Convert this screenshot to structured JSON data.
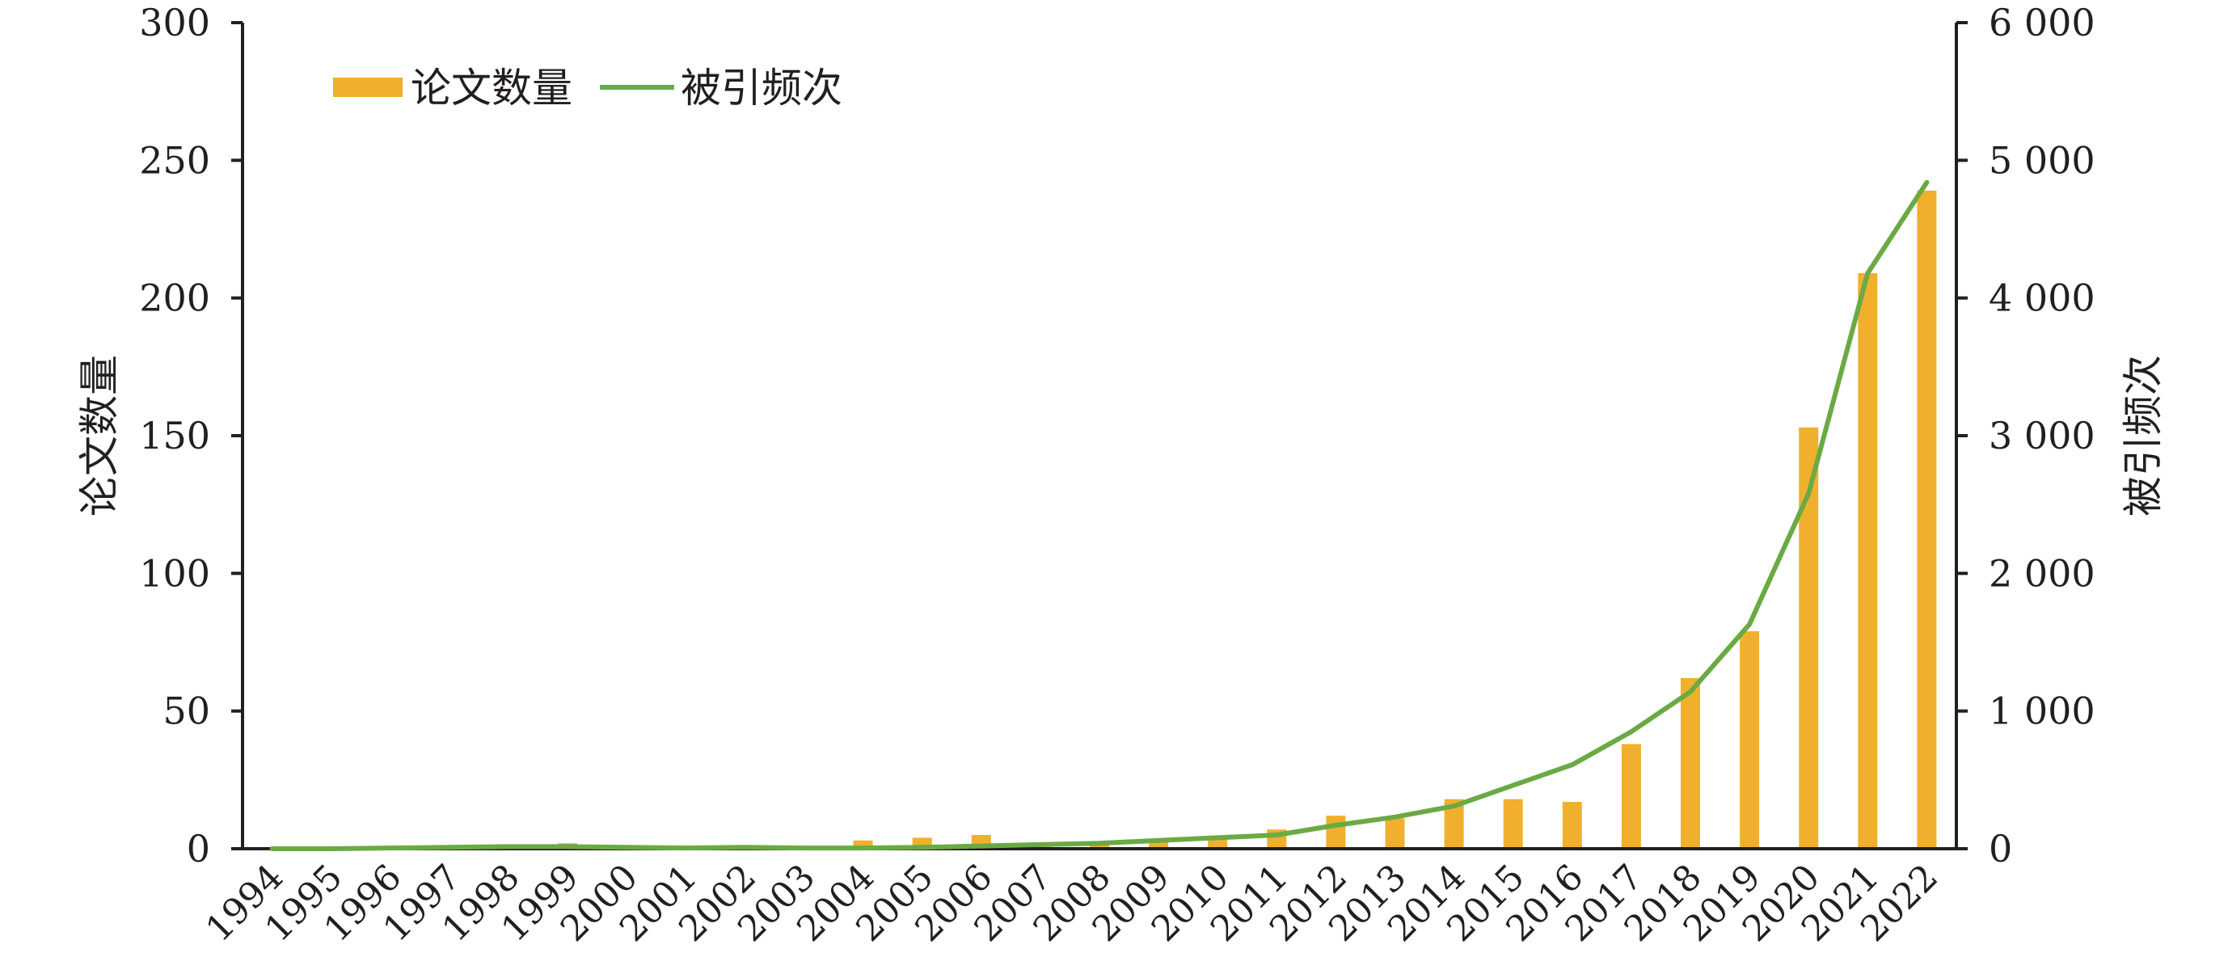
{
  "chart_data": {
    "type": "bar+line",
    "categories": [
      "1994",
      "1995",
      "1996",
      "1997",
      "1998",
      "1999",
      "2000",
      "2001",
      "2002",
      "2003",
      "2004",
      "2005",
      "2006",
      "2007",
      "2008",
      "2009",
      "2010",
      "2011",
      "2012",
      "2013",
      "2014",
      "2015",
      "2016",
      "2017",
      "2018",
      "2019",
      "2020",
      "2021",
      "2022"
    ],
    "series": [
      {
        "name": "论文数量",
        "type": "bar",
        "axis": "left",
        "color": "#f0b02d",
        "values": [
          0,
          0,
          0,
          1,
          1,
          2,
          1,
          0,
          1,
          0,
          3,
          4,
          5,
          2,
          2,
          3,
          4,
          7,
          12,
          11,
          18,
          18,
          17,
          38,
          62,
          79,
          153,
          209,
          239
        ]
      },
      {
        "name": "被引频次",
        "type": "line",
        "axis": "right",
        "color": "#6aaa44",
        "values": [
          0,
          0,
          5,
          10,
          15,
          15,
          10,
          5,
          10,
          5,
          5,
          10,
          20,
          30,
          40,
          60,
          80,
          100,
          170,
          230,
          310,
          460,
          610,
          850,
          1140,
          1630,
          2580,
          4180,
          4840
        ]
      }
    ],
    "ylabel_left": "论文数量",
    "ylabel_right": "被引频次",
    "ylim_left": [
      0,
      300
    ],
    "ylim_right": [
      0,
      6000
    ],
    "yticks_left": [
      "0",
      "50",
      "100",
      "150",
      "200",
      "250",
      "300"
    ],
    "yticks_right": [
      "0",
      "1 000",
      "2 000",
      "3 000",
      "4 000",
      "5 000",
      "6 000"
    ],
    "legend_position": "top-left",
    "grid": false
  }
}
